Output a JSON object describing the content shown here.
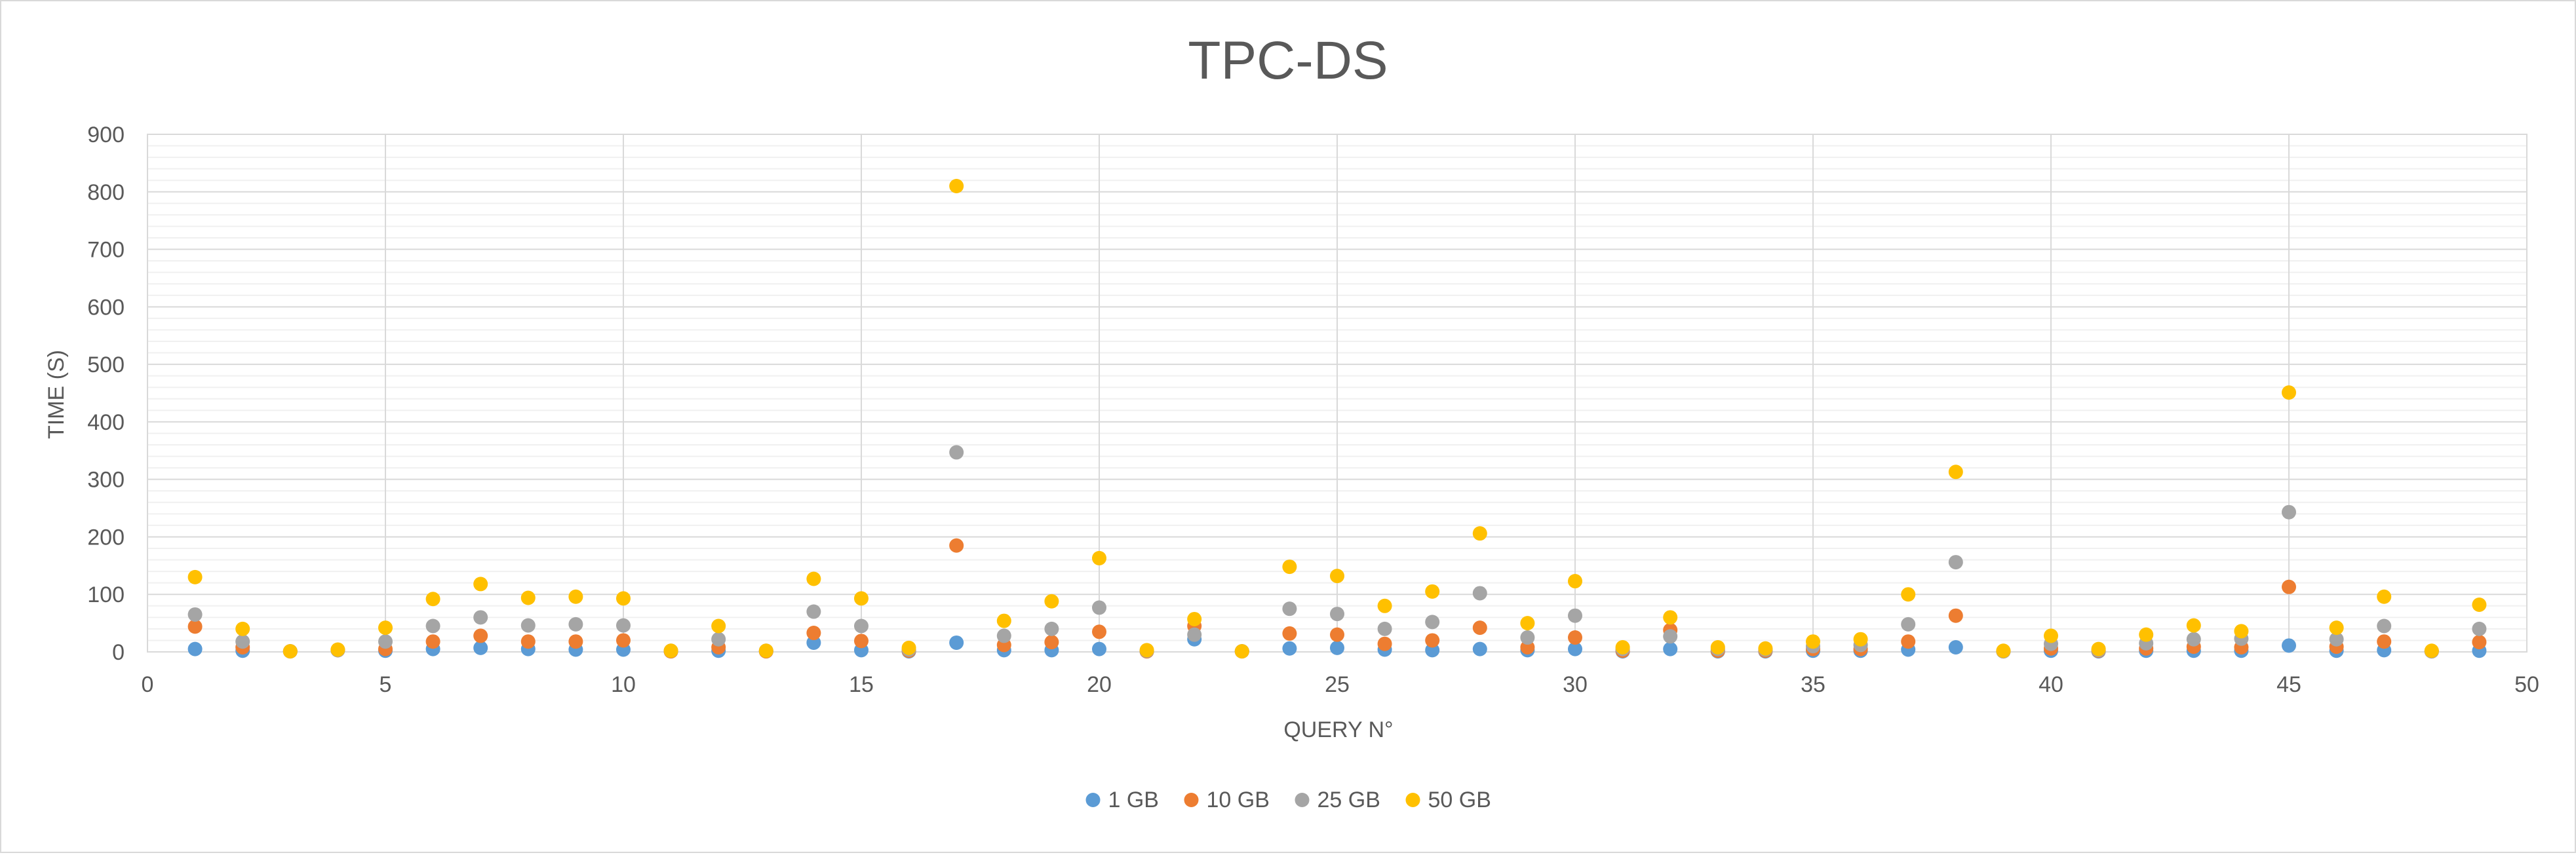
{
  "chart_data": {
    "type": "scatter",
    "title": "TPC-DS",
    "xlabel": "QUERY N°",
    "ylabel": "TIME (S)",
    "xlim": [
      0,
      50
    ],
    "ylim": [
      0,
      900
    ],
    "x_ticks": [
      0,
      5,
      10,
      15,
      20,
      25,
      30,
      35,
      40,
      45,
      50
    ],
    "y_ticks": [
      0,
      100,
      200,
      300,
      400,
      500,
      600,
      700,
      800,
      900
    ],
    "grid": {
      "major_x": true,
      "major_y": true,
      "minor_y": true
    },
    "legend_position": "bottom",
    "series": [
      {
        "name": "1 GB",
        "color": "#5B9BD5",
        "points": [
          [
            1,
            5
          ],
          [
            2,
            2
          ],
          [
            3,
            1
          ],
          [
            4,
            3
          ],
          [
            5,
            2
          ],
          [
            6,
            5
          ],
          [
            7,
            7
          ],
          [
            8,
            5
          ],
          [
            9,
            4
          ],
          [
            10,
            4
          ],
          [
            11,
            1
          ],
          [
            12,
            2
          ],
          [
            13,
            1
          ],
          [
            14,
            16
          ],
          [
            15,
            3
          ],
          [
            16,
            1
          ],
          [
            17,
            16
          ],
          [
            18,
            3
          ],
          [
            19,
            3
          ],
          [
            20,
            5
          ],
          [
            21,
            1
          ],
          [
            22,
            22
          ],
          [
            23,
            1
          ],
          [
            24,
            6
          ],
          [
            25,
            7
          ],
          [
            26,
            4
          ],
          [
            27,
            3
          ],
          [
            28,
            5
          ],
          [
            29,
            3
          ],
          [
            30,
            5
          ],
          [
            31,
            1
          ],
          [
            32,
            5
          ],
          [
            33,
            1
          ],
          [
            34,
            1
          ],
          [
            35,
            2
          ],
          [
            36,
            2
          ],
          [
            37,
            4
          ],
          [
            38,
            8
          ],
          [
            39,
            1
          ],
          [
            40,
            2
          ],
          [
            41,
            1
          ],
          [
            42,
            2
          ],
          [
            43,
            2
          ],
          [
            44,
            2
          ],
          [
            45,
            11
          ],
          [
            46,
            2
          ],
          [
            47,
            3
          ],
          [
            48,
            1
          ],
          [
            49,
            2
          ]
        ]
      },
      {
        "name": "10 GB",
        "color": "#ED7D31",
        "points": [
          [
            1,
            44
          ],
          [
            2,
            8
          ],
          [
            3,
            1
          ],
          [
            4,
            3
          ],
          [
            5,
            5
          ],
          [
            6,
            18
          ],
          [
            7,
            28
          ],
          [
            8,
            18
          ],
          [
            9,
            18
          ],
          [
            10,
            20
          ],
          [
            11,
            1
          ],
          [
            12,
            8
          ],
          [
            13,
            1
          ],
          [
            14,
            33
          ],
          [
            15,
            19
          ],
          [
            16,
            2
          ],
          [
            17,
            185
          ],
          [
            18,
            12
          ],
          [
            19,
            17
          ],
          [
            20,
            35
          ],
          [
            21,
            1
          ],
          [
            22,
            45
          ],
          [
            23,
            1
          ],
          [
            24,
            32
          ],
          [
            25,
            30
          ],
          [
            26,
            14
          ],
          [
            27,
            20
          ],
          [
            28,
            42
          ],
          [
            29,
            8
          ],
          [
            30,
            25
          ],
          [
            31,
            2
          ],
          [
            32,
            38
          ],
          [
            33,
            2
          ],
          [
            34,
            2
          ],
          [
            35,
            5
          ],
          [
            36,
            5
          ],
          [
            37,
            18
          ],
          [
            38,
            63
          ],
          [
            39,
            1
          ],
          [
            40,
            6
          ],
          [
            41,
            2
          ],
          [
            42,
            6
          ],
          [
            43,
            9
          ],
          [
            44,
            8
          ],
          [
            45,
            113
          ],
          [
            46,
            9
          ],
          [
            47,
            18
          ],
          [
            48,
            1
          ],
          [
            49,
            17
          ]
        ]
      },
      {
        "name": "25 GB",
        "color": "#A5A5A5",
        "points": [
          [
            1,
            65
          ],
          [
            2,
            18
          ],
          [
            3,
            1
          ],
          [
            4,
            3
          ],
          [
            5,
            18
          ],
          [
            6,
            45
          ],
          [
            7,
            60
          ],
          [
            8,
            46
          ],
          [
            9,
            48
          ],
          [
            10,
            46
          ],
          [
            11,
            2
          ],
          [
            12,
            22
          ],
          [
            13,
            2
          ],
          [
            14,
            70
          ],
          [
            15,
            45
          ],
          [
            16,
            4
          ],
          [
            17,
            347
          ],
          [
            18,
            28
          ],
          [
            19,
            40
          ],
          [
            20,
            77
          ],
          [
            21,
            2
          ],
          [
            22,
            30
          ],
          [
            23,
            1
          ],
          [
            24,
            75
          ],
          [
            25,
            66
          ],
          [
            26,
            40
          ],
          [
            27,
            52
          ],
          [
            28,
            102
          ],
          [
            29,
            25
          ],
          [
            30,
            63
          ],
          [
            31,
            5
          ],
          [
            32,
            27
          ],
          [
            33,
            5
          ],
          [
            34,
            4
          ],
          [
            35,
            10
          ],
          [
            36,
            12
          ],
          [
            37,
            48
          ],
          [
            38,
            156
          ],
          [
            39,
            1
          ],
          [
            40,
            14
          ],
          [
            41,
            3
          ],
          [
            42,
            15
          ],
          [
            43,
            22
          ],
          [
            44,
            23
          ],
          [
            45,
            243
          ],
          [
            46,
            22
          ],
          [
            47,
            45
          ],
          [
            48,
            1
          ],
          [
            49,
            40
          ]
        ]
      },
      {
        "name": "50 GB",
        "color": "#FFC000",
        "points": [
          [
            1,
            130
          ],
          [
            2,
            40
          ],
          [
            3,
            1
          ],
          [
            4,
            4
          ],
          [
            5,
            42
          ],
          [
            6,
            92
          ],
          [
            7,
            118
          ],
          [
            8,
            94
          ],
          [
            9,
            96
          ],
          [
            10,
            93
          ],
          [
            11,
            2
          ],
          [
            12,
            45
          ],
          [
            13,
            2
          ],
          [
            14,
            127
          ],
          [
            15,
            93
          ],
          [
            16,
            7
          ],
          [
            17,
            810
          ],
          [
            18,
            54
          ],
          [
            19,
            88
          ],
          [
            20,
            163
          ],
          [
            21,
            3
          ],
          [
            22,
            57
          ],
          [
            23,
            1
          ],
          [
            24,
            148
          ],
          [
            25,
            132
          ],
          [
            26,
            80
          ],
          [
            27,
            105
          ],
          [
            28,
            206
          ],
          [
            29,
            50
          ],
          [
            30,
            123
          ],
          [
            31,
            8
          ],
          [
            32,
            60
          ],
          [
            33,
            8
          ],
          [
            34,
            6
          ],
          [
            35,
            18
          ],
          [
            36,
            22
          ],
          [
            37,
            100
          ],
          [
            38,
            313
          ],
          [
            39,
            2
          ],
          [
            40,
            28
          ],
          [
            41,
            5
          ],
          [
            42,
            30
          ],
          [
            43,
            46
          ],
          [
            44,
            36
          ],
          [
            45,
            451
          ],
          [
            46,
            42
          ],
          [
            47,
            96
          ],
          [
            48,
            2
          ],
          [
            49,
            82
          ]
        ]
      }
    ]
  }
}
